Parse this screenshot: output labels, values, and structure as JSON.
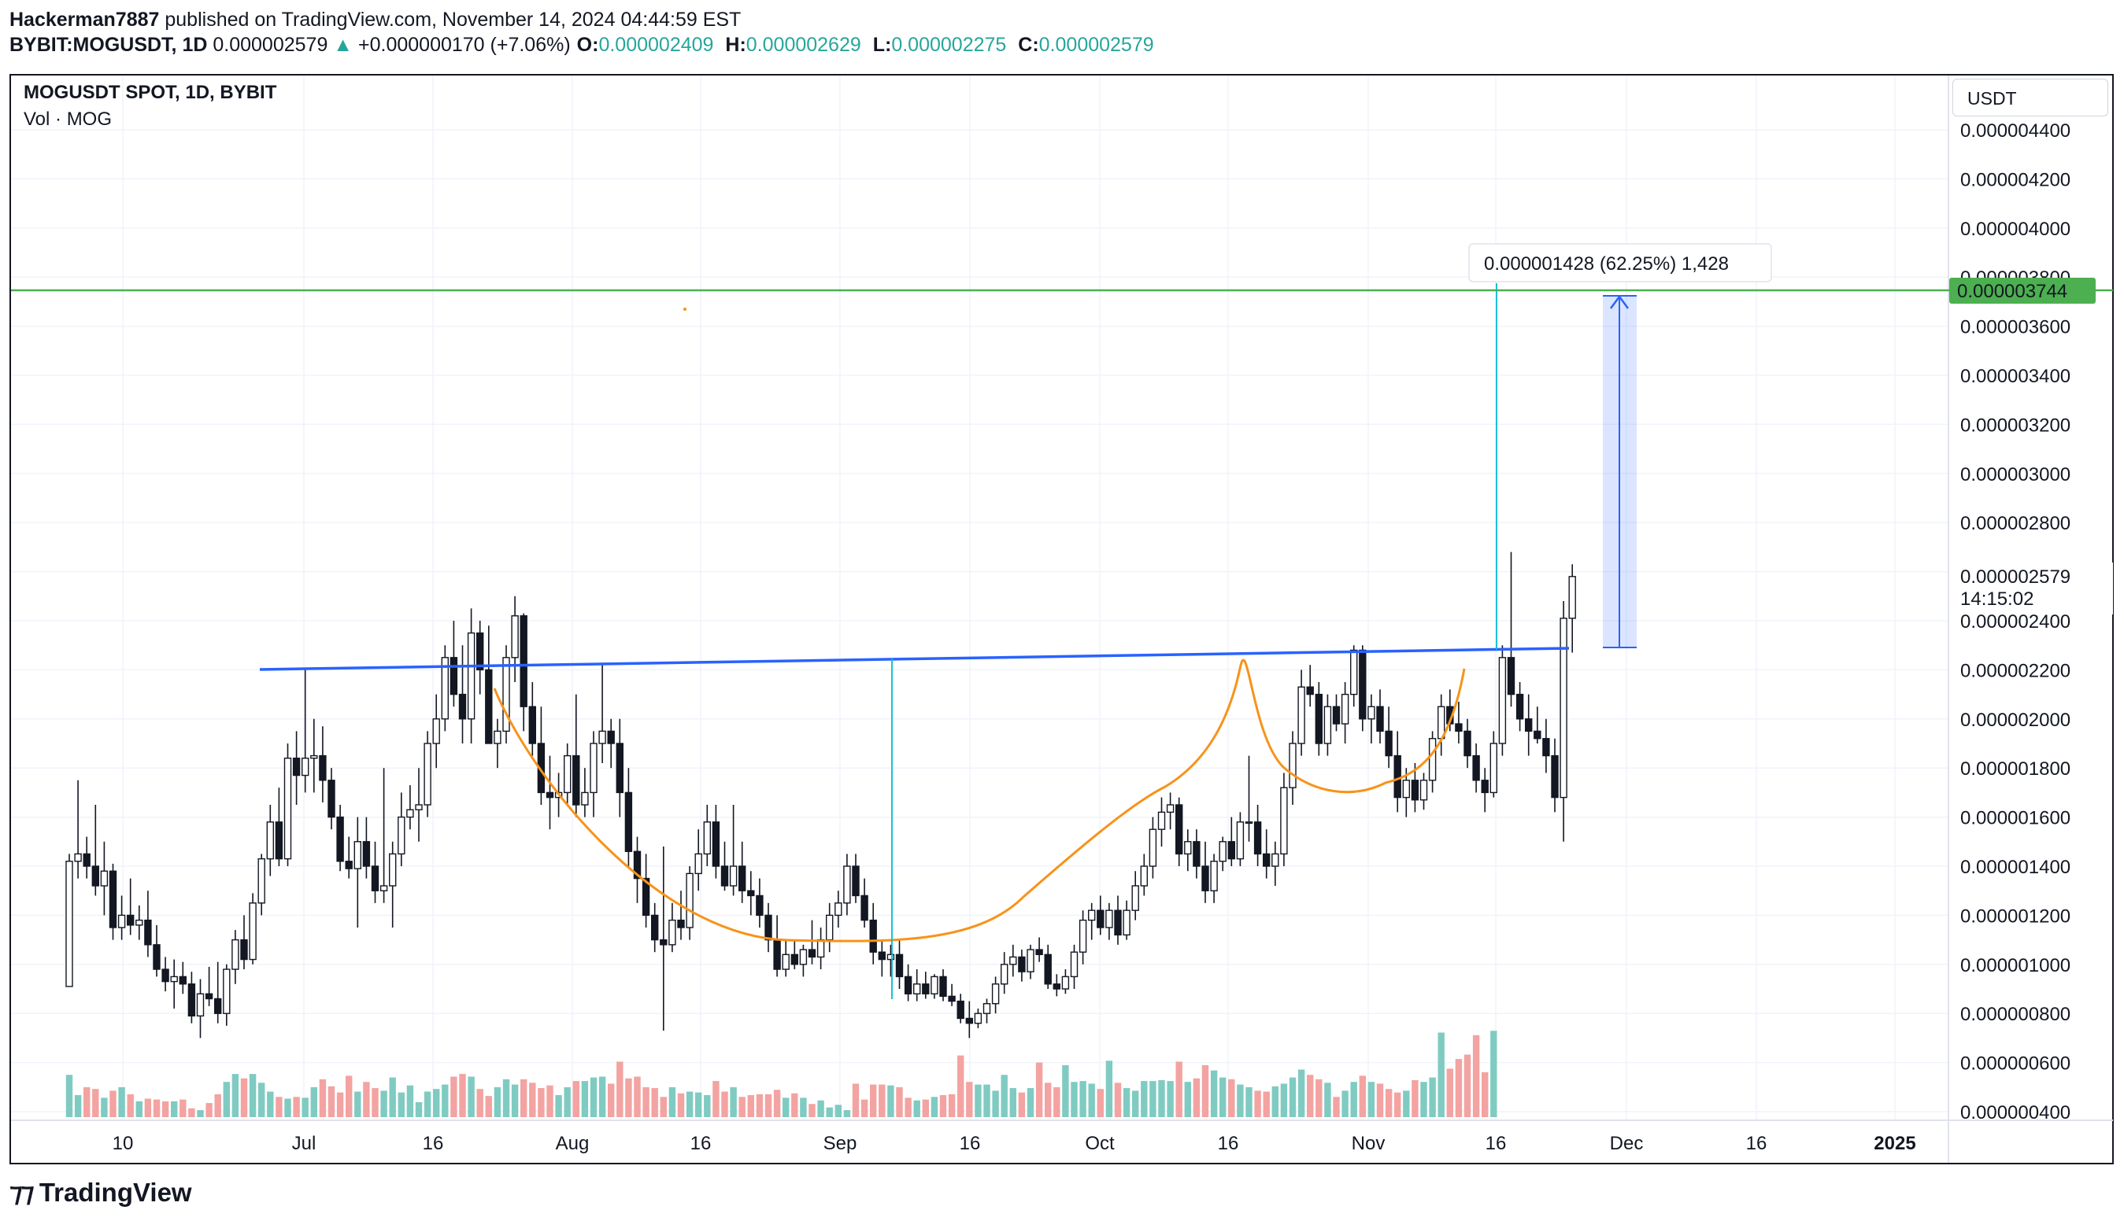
{
  "header": {
    "author": "Hackerman7887",
    "published_text": "published on TradingView.com, November 14, 2024 04:44:59 EST",
    "symbol": "BYBIT:MOGUSDT, 1D",
    "last": "0.000002579",
    "change": "+0.000000170 (+7.06%)",
    "open_label": "O:",
    "open": "0.000002409",
    "high_label": "H:",
    "high": "0.000002629",
    "low_label": "L:",
    "low": "0.000002275",
    "close_label": "C:",
    "close": "0.000002579"
  },
  "legend": {
    "title": "MOGUSDT SPOT, 1D, BYBIT",
    "volume": "Vol · MOG"
  },
  "currency": "USDT",
  "countdown": "14:15:02",
  "green_line_label": "0.000003744",
  "last_price_label": "0.000002579",
  "measure_label": "0.000001428 (62.25%) 1,428",
  "brand": "TradingView",
  "colors": {
    "up": "#26a69a",
    "down": "#ef5350",
    "up_vol": "#7fcbc2",
    "down_vol": "#f3a3a1",
    "trend": "#2962ff",
    "cup": "#f7931a",
    "target": "#4caf50",
    "measure": "#00bcd4"
  },
  "chart_data": {
    "type": "candlestick",
    "price_scale": {
      "min": 4e-07,
      "max": 4.4e-06,
      "step": 2e-07
    },
    "y_ticks": [
      "0.000004400",
      "0.000004200",
      "0.000004000",
      "0.000003800",
      "0.000003600",
      "0.000003400",
      "0.000003200",
      "0.000003000",
      "0.000002800",
      "0.000002400",
      "0.000002200",
      "0.000002000",
      "0.000001800",
      "0.000001600",
      "0.000001400",
      "0.000001200",
      "0.000001000",
      "0.000000800",
      "0.000000600",
      "0.000000400"
    ],
    "x_ticks": [
      "10",
      "Jul",
      "16",
      "Aug",
      "16",
      "Sep",
      "16",
      "Oct",
      "16",
      "Nov",
      "16",
      "Dec",
      "16",
      "2025"
    ],
    "x_start": "2024-06-01",
    "candles": [
      [
        9.1e-07,
        1.45e-06,
        9.1e-07,
        1.42e-06
      ],
      [
        1.42e-06,
        1.75e-06,
        1.35e-06,
        1.45e-06
      ],
      [
        1.45e-06,
        1.52e-06,
        1.35e-06,
        1.4e-06
      ],
      [
        1.4e-06,
        1.65e-06,
        1.28e-06,
        1.32e-06
      ],
      [
        1.32e-06,
        1.5e-06,
        1.2e-06,
        1.38e-06
      ],
      [
        1.38e-06,
        1.41e-06,
        1.1e-06,
        1.15e-06
      ],
      [
        1.15e-06,
        1.28e-06,
        1.1e-06,
        1.2e-06
      ],
      [
        1.2e-06,
        1.35e-06,
        1.12e-06,
        1.16e-06
      ],
      [
        1.16e-06,
        1.24e-06,
        1.1e-06,
        1.18e-06
      ],
      [
        1.18e-06,
        1.3e-06,
        1.03e-06,
        1.08e-06
      ],
      [
        1.08e-06,
        1.16e-06,
        9.5e-07,
        9.8e-07
      ],
      [
        9.8e-07,
        1.03e-06,
        8.9e-07,
        9.3e-07
      ],
      [
        9.3e-07,
        1.02e-06,
        8.2e-07,
        9.5e-07
      ],
      [
        9.5e-07,
        1.01e-06,
        8.8e-07,
        9.2e-07
      ],
      [
        9.2e-07,
        9.7e-07,
        7.6e-07,
        7.9e-07
      ],
      [
        7.9e-07,
        9.4e-07,
        7e-07,
        8.8e-07
      ],
      [
        8.8e-07,
        9.9e-07,
        8.3e-07,
        8.6e-07
      ],
      [
        8.6e-07,
        1.01e-06,
        7.6e-07,
        8e-07
      ],
      [
        8e-07,
        1e-06,
        7.5e-07,
        9.8e-07
      ],
      [
        9.8e-07,
        1.14e-06,
        9.2e-07,
        1.1e-06
      ],
      [
        1.1e-06,
        1.2e-06,
        9.8e-07,
        1.02e-06
      ],
      [
        1.02e-06,
        1.29e-06,
        1e-06,
        1.25e-06
      ],
      [
        1.25e-06,
        1.45e-06,
        1.2e-06,
        1.43e-06
      ],
      [
        1.43e-06,
        1.65e-06,
        1.36e-06,
        1.58e-06
      ],
      [
        1.58e-06,
        1.72e-06,
        1.4e-06,
        1.43e-06
      ],
      [
        1.43e-06,
        1.9e-06,
        1.4e-06,
        1.84e-06
      ],
      [
        1.84e-06,
        1.95e-06,
        1.65e-06,
        1.77e-06
      ],
      [
        1.77e-06,
        2.2e-06,
        1.7e-06,
        1.84e-06
      ],
      [
        1.84e-06,
        2e-06,
        1.7e-06,
        1.85e-06
      ],
      [
        1.85e-06,
        1.97e-06,
        1.66e-06,
        1.75e-06
      ],
      [
        1.75e-06,
        1.8e-06,
        1.55e-06,
        1.6e-06
      ],
      [
        1.6e-06,
        1.65e-06,
        1.38e-06,
        1.42e-06
      ],
      [
        1.42e-06,
        1.52e-06,
        1.35e-06,
        1.39e-06
      ],
      [
        1.39e-06,
        1.6e-06,
        1.15e-06,
        1.5e-06
      ],
      [
        1.5e-06,
        1.6e-06,
        1.35e-06,
        1.4e-06
      ],
      [
        1.4e-06,
        1.5e-06,
        1.25e-06,
        1.3e-06
      ],
      [
        1.3e-06,
        1.8e-06,
        1.25e-06,
        1.32e-06
      ],
      [
        1.32e-06,
        1.5e-06,
        1.15e-06,
        1.45e-06
      ],
      [
        1.45e-06,
        1.7e-06,
        1.4e-06,
        1.6e-06
      ],
      [
        1.6e-06,
        1.73e-06,
        1.55e-06,
        1.63e-06
      ],
      [
        1.63e-06,
        1.8e-06,
        1.5e-06,
        1.65e-06
      ],
      [
        1.65e-06,
        1.95e-06,
        1.6e-06,
        1.9e-06
      ],
      [
        1.9e-06,
        2.1e-06,
        1.8e-06,
        2e-06
      ],
      [
        2e-06,
        2.3e-06,
        1.95e-06,
        2.25e-06
      ],
      [
        2.25e-06,
        2.4e-06,
        2.05e-06,
        2.1e-06
      ],
      [
        2.1e-06,
        2.3e-06,
        1.9e-06,
        2e-06
      ],
      [
        2e-06,
        2.45e-06,
        1.9e-06,
        2.35e-06
      ],
      [
        2.35e-06,
        2.4e-06,
        2.1e-06,
        2.2e-06
      ],
      [
        2.2e-06,
        2.38e-06,
        1.9e-06,
        1.9e-06
      ],
      [
        1.9e-06,
        2e-06,
        1.8e-06,
        1.95e-06
      ],
      [
        1.95e-06,
        2.3e-06,
        1.9e-06,
        2.25e-06
      ],
      [
        2.25e-06,
        2.5e-06,
        2.15e-06,
        2.42e-06
      ],
      [
        2.42e-06,
        2.43e-06,
        1.95e-06,
        2.05e-06
      ],
      [
        2.05e-06,
        2.15e-06,
        1.85e-06,
        1.9e-06
      ],
      [
        1.9e-06,
        2.05e-06,
        1.65e-06,
        1.7e-06
      ],
      [
        1.7e-06,
        1.85e-06,
        1.55e-06,
        1.68e-06
      ],
      [
        1.68e-06,
        1.78e-06,
        1.6e-06,
        1.7e-06
      ],
      [
        1.7e-06,
        1.9e-06,
        1.65e-06,
        1.85e-06
      ],
      [
        1.85e-06,
        2.1e-06,
        1.6e-06,
        1.65e-06
      ],
      [
        1.65e-06,
        1.8e-06,
        1.6e-06,
        1.7e-06
      ],
      [
        1.7e-06,
        1.95e-06,
        1.6e-06,
        1.9e-06
      ],
      [
        1.9e-06,
        2.22e-06,
        1.82e-06,
        1.95e-06
      ],
      [
        1.95e-06,
        2e-06,
        1.8e-06,
        1.9e-06
      ],
      [
        1.9e-06,
        2e-06,
        1.6e-06,
        1.7e-06
      ],
      [
        1.7e-06,
        1.8e-06,
        1.4e-06,
        1.46e-06
      ],
      [
        1.46e-06,
        1.52e-06,
        1.25e-06,
        1.35e-06
      ],
      [
        1.35e-06,
        1.45e-06,
        1.15e-06,
        1.2e-06
      ],
      [
        1.2e-06,
        1.25e-06,
        1.05e-06,
        1.1e-06
      ],
      [
        1.1e-06,
        1.48e-06,
        7.3e-07,
        1.08e-06
      ],
      [
        1.08e-06,
        1.25e-06,
        1.05e-06,
        1.18e-06
      ],
      [
        1.18e-06,
        1.3e-06,
        1.1e-06,
        1.15e-06
      ],
      [
        1.15e-06,
        1.4e-06,
        1.1e-06,
        1.37e-06
      ],
      [
        1.37e-06,
        1.55e-06,
        1.3e-06,
        1.45e-06
      ],
      [
        1.45e-06,
        1.65e-06,
        1.4e-06,
        1.58e-06
      ],
      [
        1.58e-06,
        1.65e-06,
        1.35e-06,
        1.4e-06
      ],
      [
        1.4e-06,
        1.5e-06,
        1.3e-06,
        1.32e-06
      ],
      [
        1.32e-06,
        1.65e-06,
        1.28e-06,
        1.4e-06
      ],
      [
        1.4e-06,
        1.5e-06,
        1.25e-06,
        1.3e-06
      ],
      [
        1.3e-06,
        1.38e-06,
        1.2e-06,
        1.28e-06
      ],
      [
        1.28e-06,
        1.35e-06,
        1.15e-06,
        1.2e-06
      ],
      [
        1.2e-06,
        1.25e-06,
        1.05e-06,
        1.1e-06
      ],
      [
        1.1e-06,
        1.2e-06,
        9.5e-07,
        9.8e-07
      ],
      [
        9.8e-07,
        1.1e-06,
        9.5e-07,
        1.04e-06
      ],
      [
        1.04e-06,
        1.1e-06,
        9.8e-07,
        1e-06
      ],
      [
        1e-06,
        1.08e-06,
        9.5e-07,
        1.06e-06
      ],
      [
        1.06e-06,
        1.18e-06,
        1e-06,
        1.03e-06
      ],
      [
        1.03e-06,
        1.15e-06,
        9.8e-07,
        1.1e-06
      ],
      [
        1.1e-06,
        1.25e-06,
        1.05e-06,
        1.2e-06
      ],
      [
        1.2e-06,
        1.3e-06,
        1.15e-06,
        1.25e-06
      ],
      [
        1.25e-06,
        1.45e-06,
        1.2e-06,
        1.4e-06
      ],
      [
        1.4e-06,
        1.45e-06,
        1.25e-06,
        1.28e-06
      ],
      [
        1.28e-06,
        1.35e-06,
        1.15e-06,
        1.18e-06
      ],
      [
        1.18e-06,
        1.25e-06,
        1e-06,
        1.05e-06
      ],
      [
        1.05e-06,
        1.1e-06,
        9.5e-07,
        1.02e-06
      ],
      [
        1.02e-06,
        1.08e-06,
        9.5e-07,
        1.04e-06
      ],
      [
        1.04e-06,
        1.1e-06,
        9e-07,
        9.5e-07
      ],
      [
        9.5e-07,
        1e-06,
        8.5e-07,
        8.8e-07
      ],
      [
        8.8e-07,
        9.8e-07,
        8.5e-07,
        9.2e-07
      ],
      [
        9.2e-07,
        9.7e-07,
        8.6e-07,
        8.8e-07
      ],
      [
        8.8e-07,
        9.6e-07,
        8.6e-07,
        9.5e-07
      ],
      [
        9.5e-07,
        9.8e-07,
        8.5e-07,
        8.7e-07
      ],
      [
        8.7e-07,
        9.2e-07,
        8.3e-07,
        8.5e-07
      ],
      [
        8.5e-07,
        8.8e-07,
        7.6e-07,
        7.8e-07
      ],
      [
        7.8e-07,
        8.5e-07,
        7e-07,
        7.6e-07
      ],
      [
        7.6e-07,
        8.2e-07,
        7.4e-07,
        8e-07
      ],
      [
        8e-07,
        8.6e-07,
        7.6e-07,
        8.4e-07
      ],
      [
        8.4e-07,
        9.5e-07,
        8e-07,
        9.2e-07
      ],
      [
        9.2e-07,
        1.05e-06,
        8.8e-07,
        1e-06
      ],
      [
        1e-06,
        1.08e-06,
        9.5e-07,
        1.03e-06
      ],
      [
        1.03e-06,
        1.06e-06,
        9.3e-07,
        9.7e-07
      ],
      [
        9.7e-07,
        1.08e-06,
        9.4e-07,
        1.06e-06
      ],
      [
        1.06e-06,
        1.11e-06,
        1.01e-06,
        1.04e-06
      ],
      [
        1.04e-06,
        1.08e-06,
        9e-07,
        9.2e-07
      ],
      [
        9.2e-07,
        9.6e-07,
        8.7e-07,
        9e-07
      ],
      [
        9e-07,
        9.8e-07,
        8.8e-07,
        9.5e-07
      ],
      [
        9.5e-07,
        1.08e-06,
        9e-07,
        1.05e-06
      ],
      [
        1.05e-06,
        1.22e-06,
        1e-06,
        1.18e-06
      ],
      [
        1.18e-06,
        1.25e-06,
        1.1e-06,
        1.22e-06
      ],
      [
        1.22e-06,
        1.28e-06,
        1.12e-06,
        1.15e-06
      ],
      [
        1.15e-06,
        1.25e-06,
        1.1e-06,
        1.22e-06
      ],
      [
        1.22e-06,
        1.28e-06,
        1.08e-06,
        1.12e-06
      ],
      [
        1.12e-06,
        1.26e-06,
        1.1e-06,
        1.22e-06
      ],
      [
        1.22e-06,
        1.38e-06,
        1.18e-06,
        1.32e-06
      ],
      [
        1.32e-06,
        1.45e-06,
        1.28e-06,
        1.4e-06
      ],
      [
        1.4e-06,
        1.6e-06,
        1.35e-06,
        1.55e-06
      ],
      [
        1.55e-06,
        1.68e-06,
        1.48e-06,
        1.62e-06
      ],
      [
        1.62e-06,
        1.7e-06,
        1.55e-06,
        1.65e-06
      ],
      [
        1.65e-06,
        1.68e-06,
        1.4e-06,
        1.45e-06
      ],
      [
        1.45e-06,
        1.55e-06,
        1.38e-06,
        1.5e-06
      ],
      [
        1.5e-06,
        1.55e-06,
        1.35e-06,
        1.4e-06
      ],
      [
        1.4e-06,
        1.5e-06,
        1.25e-06,
        1.3e-06
      ],
      [
        1.3e-06,
        1.45e-06,
        1.25e-06,
        1.42e-06
      ],
      [
        1.42e-06,
        1.52e-06,
        1.38e-06,
        1.5e-06
      ],
      [
        1.5e-06,
        1.6e-06,
        1.4e-06,
        1.43e-06
      ],
      [
        1.43e-06,
        1.62e-06,
        1.4e-06,
        1.58e-06
      ],
      [
        1.58e-06,
        1.85e-06,
        1.5e-06,
        1.58e-06
      ],
      [
        1.58e-06,
        1.65e-06,
        1.4e-06,
        1.45e-06
      ],
      [
        1.45e-06,
        1.55e-06,
        1.35e-06,
        1.4e-06
      ],
      [
        1.4e-06,
        1.5e-06,
        1.32e-06,
        1.45e-06
      ],
      [
        1.45e-06,
        1.78e-06,
        1.4e-06,
        1.72e-06
      ],
      [
        1.72e-06,
        1.95e-06,
        1.65e-06,
        1.9e-06
      ],
      [
        1.9e-06,
        2.2e-06,
        1.85e-06,
        2.13e-06
      ],
      [
        2.13e-06,
        2.22e-06,
        2.05e-06,
        2.1e-06
      ],
      [
        2.1e-06,
        2.15e-06,
        1.85e-06,
        1.9e-06
      ],
      [
        1.9e-06,
        2.1e-06,
        1.85e-06,
        2.05e-06
      ],
      [
        2.05e-06,
        2.1e-06,
        1.95e-06,
        1.98e-06
      ],
      [
        1.98e-06,
        2.15e-06,
        1.9e-06,
        2.1e-06
      ],
      [
        2.1e-06,
        2.3e-06,
        2.05e-06,
        2.28e-06
      ],
      [
        2.28e-06,
        2.3e-06,
        1.95e-06,
        2e-06
      ],
      [
        2e-06,
        2.1e-06,
        1.9e-06,
        2.05e-06
      ],
      [
        2.05e-06,
        2.12e-06,
        1.9e-06,
        1.95e-06
      ],
      [
        1.95e-06,
        2.05e-06,
        1.8e-06,
        1.85e-06
      ],
      [
        1.85e-06,
        1.95e-06,
        1.62e-06,
        1.68e-06
      ],
      [
        1.68e-06,
        1.8e-06,
        1.6e-06,
        1.75e-06
      ],
      [
        1.75e-06,
        1.82e-06,
        1.62e-06,
        1.67e-06
      ],
      [
        1.67e-06,
        1.78e-06,
        1.63e-06,
        1.75e-06
      ],
      [
        1.75e-06,
        1.95e-06,
        1.7e-06,
        1.92e-06
      ],
      [
        1.92e-06,
        2.1e-06,
        1.85e-06,
        2.05e-06
      ],
      [
        2.05e-06,
        2.12e-06,
        1.95e-06,
        1.98e-06
      ],
      [
        1.98e-06,
        2.07e-06,
        1.9e-06,
        1.95e-06
      ],
      [
        1.95e-06,
        2e-06,
        1.8e-06,
        1.85e-06
      ],
      [
        1.85e-06,
        1.9e-06,
        1.7e-06,
        1.75e-06
      ],
      [
        1.75e-06,
        1.8e-06,
        1.62e-06,
        1.7e-06
      ],
      [
        1.7e-06,
        1.95e-06,
        1.68e-06,
        1.9e-06
      ],
      [
        1.9e-06,
        2.3e-06,
        1.85e-06,
        2.25e-06
      ],
      [
        2.25e-06,
        2.68e-06,
        2.05e-06,
        2.1e-06
      ],
      [
        2.1e-06,
        2.15e-06,
        1.95e-06,
        2e-06
      ],
      [
        2e-06,
        2.1e-06,
        1.85e-06,
        1.95e-06
      ],
      [
        1.95e-06,
        2.05e-06,
        1.9e-06,
        1.92e-06
      ],
      [
        1.92e-06,
        2e-06,
        1.78e-06,
        1.85e-06
      ],
      [
        1.85e-06,
        1.92e-06,
        1.62e-06,
        1.68e-06
      ],
      [
        1.68e-06,
        2.48e-06,
        1.5e-06,
        2.41e-06
      ],
      [
        2.41e-06,
        2.63e-06,
        2.27e-06,
        2.58e-06
      ]
    ],
    "volume": [
      48,
      25,
      34,
      32,
      22,
      30,
      34,
      26,
      18,
      21,
      20,
      18,
      18,
      20,
      10,
      8,
      16,
      26,
      40,
      49,
      44,
      49,
      39,
      29,
      23,
      21,
      23,
      22,
      34,
      43,
      35,
      28,
      47,
      29,
      40,
      33,
      30,
      45,
      28,
      36,
      17,
      29,
      32,
      37,
      46,
      49,
      46,
      32,
      24,
      34,
      43,
      37,
      43,
      39,
      33,
      36,
      25,
      34,
      41,
      41,
      45,
      46,
      38,
      63,
      44,
      46,
      34,
      33,
      23,
      34,
      27,
      29,
      28,
      25,
      41,
      29,
      34,
      23,
      25,
      26,
      26,
      31,
      22,
      27,
      22,
      15,
      19,
      11,
      14,
      8,
      38,
      20,
      37,
      37,
      36,
      34,
      22,
      19,
      20,
      23,
      25,
      26,
      70,
      40,
      37,
      37,
      30,
      48,
      33,
      28,
      33,
      62,
      39,
      34,
      59,
      40,
      41,
      38,
      32,
      64,
      39,
      33,
      30,
      41,
      41,
      42,
      41,
      63,
      40,
      44,
      59,
      53,
      45,
      43,
      37,
      34,
      30,
      29,
      35,
      38,
      45,
      54,
      48,
      43,
      39,
      23,
      30,
      40,
      47,
      40,
      38,
      32,
      28,
      30,
      42,
      40,
      45,
      96,
      55,
      66,
      71,
      93,
      51,
      98
    ],
    "overlays": {
      "resistance": {
        "from": [
          2.1882e-06
        ],
        "to": [
          2.28e-06
        ]
      },
      "target_level": 3.744e-06,
      "measure_from": 2.29e-06,
      "measure_to": 3.718e-06
    }
  }
}
